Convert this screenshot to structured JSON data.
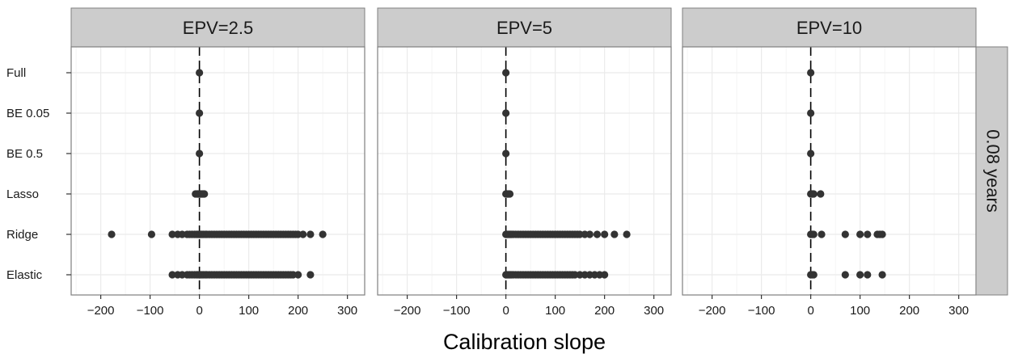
{
  "chart_data": {
    "type": "scatter",
    "xlabel": "Calibration slope",
    "ylabel": "",
    "xlim": [
      -260,
      335
    ],
    "x_ticks": [
      -200,
      -100,
      0,
      100,
      200,
      300
    ],
    "x_tick_labels": [
      "−200",
      "−100",
      "0",
      "100",
      "200",
      "300"
    ],
    "categories": [
      "Full",
      "BE 0.05",
      "BE 0.5",
      "Lasso",
      "Ridge",
      "Elastic"
    ],
    "reference_line_x": 0,
    "facet_row_label": "0.08 years",
    "grid": true,
    "colors": {
      "point": "#333333",
      "strip_fill": "#cccccc",
      "grid": "#ebebeb",
      "frame": "#7f7f7f",
      "refline": "#000000"
    },
    "panels": [
      {
        "label": "EPV=2.5",
        "series": [
          {
            "category": "Full",
            "x": [
              0
            ]
          },
          {
            "category": "BE 0.05",
            "x": [
              0
            ]
          },
          {
            "category": "BE 0.5",
            "x": [
              0
            ]
          },
          {
            "category": "Lasso",
            "x": [
              -8,
              -5,
              -3,
              -1,
              0,
              1,
              2,
              4,
              6,
              8,
              10
            ]
          },
          {
            "category": "Ridge",
            "x": [
              -178,
              -97,
              -55,
              -44,
              -35,
              -25,
              -20,
              -15,
              -10,
              -6,
              -3,
              0,
              2,
              5,
              8,
              12,
              15,
              20,
              25,
              30,
              35,
              40,
              45,
              50,
              55,
              60,
              65,
              70,
              75,
              80,
              85,
              90,
              95,
              100,
              105,
              110,
              115,
              120,
              125,
              130,
              135,
              140,
              145,
              150,
              155,
              160,
              165,
              170,
              175,
              180,
              185,
              190,
              195,
              200,
              210,
              225,
              250
            ]
          },
          {
            "category": "Elastic",
            "x": [
              -55,
              -44,
              -35,
              -25,
              -20,
              -15,
              -10,
              -6,
              -3,
              0,
              2,
              5,
              8,
              12,
              15,
              20,
              25,
              30,
              35,
              40,
              45,
              50,
              55,
              60,
              65,
              70,
              75,
              80,
              85,
              90,
              95,
              100,
              105,
              110,
              115,
              120,
              125,
              130,
              135,
              140,
              145,
              150,
              155,
              160,
              165,
              170,
              175,
              180,
              185,
              190,
              200,
              225
            ]
          }
        ]
      },
      {
        "label": "EPV=5",
        "series": [
          {
            "category": "Full",
            "x": [
              0
            ]
          },
          {
            "category": "BE 0.05",
            "x": [
              0
            ]
          },
          {
            "category": "BE 0.5",
            "x": [
              0
            ]
          },
          {
            "category": "Lasso",
            "x": [
              0,
              2,
              4,
              6,
              8
            ]
          },
          {
            "category": "Ridge",
            "x": [
              0,
              2,
              4,
              6,
              8,
              10,
              12,
              15,
              20,
              25,
              30,
              35,
              40,
              45,
              50,
              55,
              60,
              65,
              70,
              75,
              80,
              85,
              90,
              95,
              100,
              105,
              110,
              115,
              120,
              125,
              130,
              135,
              140,
              145,
              150,
              160,
              170,
              185,
              200,
              220,
              245
            ]
          },
          {
            "category": "Elastic",
            "x": [
              0,
              2,
              4,
              6,
              8,
              10,
              12,
              15,
              20,
              25,
              30,
              35,
              40,
              45,
              50,
              55,
              60,
              65,
              70,
              75,
              80,
              85,
              90,
              95,
              100,
              105,
              110,
              115,
              120,
              125,
              130,
              135,
              140,
              150,
              160,
              170,
              180,
              190,
              200
            ]
          }
        ]
      },
      {
        "label": "EPV=10",
        "series": [
          {
            "category": "Full",
            "x": [
              0
            ]
          },
          {
            "category": "BE 0.05",
            "x": [
              0
            ]
          },
          {
            "category": "BE 0.5",
            "x": [
              0
            ]
          },
          {
            "category": "Lasso",
            "x": [
              0,
              2,
              4,
              6,
              20
            ]
          },
          {
            "category": "Ridge",
            "x": [
              0,
              3,
              6,
              22,
              70,
              100,
              115,
              135,
              140,
              145
            ]
          },
          {
            "category": "Elastic",
            "x": [
              0,
              3,
              6,
              70,
              100,
              115,
              145
            ]
          }
        ]
      }
    ]
  }
}
